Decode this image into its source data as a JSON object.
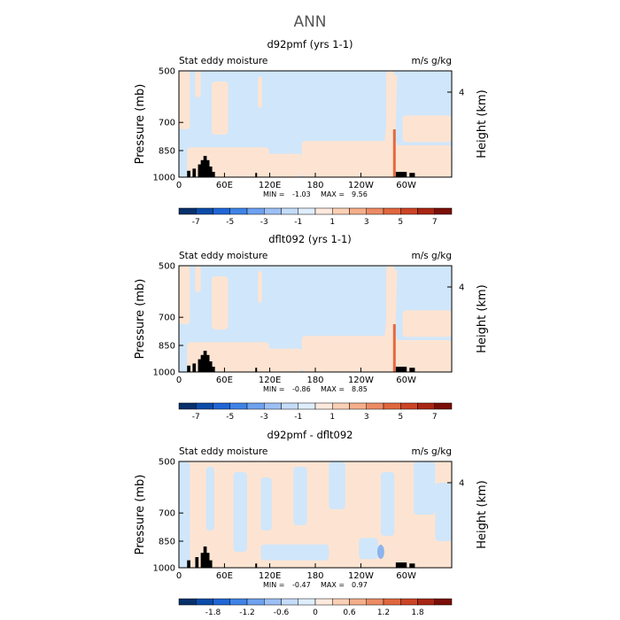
{
  "figure": {
    "title": "ANN"
  },
  "colors": {
    "neg_light": "#d0e6fa",
    "pos_light": "#fde4d2",
    "pos_mid": "#f5c0a0",
    "pos_strong": "#e46a3f",
    "neg_mid": "#8cb4ec",
    "terrain": "#000000",
    "axis": "#000000"
  },
  "chart_data": [
    {
      "type": "heatmap",
      "title": "d92pmf (yrs 1-1)",
      "left_label": "Stat eddy moisture",
      "right_label": "m/s g/kg",
      "ylabel": "Pressure (mb)",
      "ylabel_right": "Height (km)",
      "yticks": [
        "500",
        "700",
        "850",
        "1000"
      ],
      "yticks_right": [
        "4"
      ],
      "xticks": [
        "0",
        "60E",
        "120E",
        "180",
        "120W",
        "60W"
      ],
      "min_label": "MIN =",
      "min_value": "-1.03",
      "max_label": "MAX =",
      "max_value": "9.56",
      "colorbar": {
        "labels": [
          "-7",
          "-5",
          "-3",
          "-1",
          "1",
          "3",
          "5",
          "7"
        ],
        "colors": [
          "#08306b",
          "#0c4ca8",
          "#2166d6",
          "#3f83e6",
          "#6ea1ef",
          "#9cc0f5",
          "#c4dcfa",
          "#dfeefd",
          "#fde9dd",
          "#fbd0b5",
          "#f5ae8a",
          "#ec8b65",
          "#e0673f",
          "#cc4426",
          "#a82613",
          "#7a0f08"
        ]
      }
    },
    {
      "type": "heatmap",
      "title": "dflt092 (yrs 1-1)",
      "left_label": "Stat eddy moisture",
      "right_label": "m/s g/kg",
      "ylabel": "Pressure (mb)",
      "ylabel_right": "Height (km)",
      "yticks": [
        "500",
        "700",
        "850",
        "1000"
      ],
      "yticks_right": [
        "4"
      ],
      "xticks": [
        "0",
        "60E",
        "120E",
        "180",
        "120W",
        "60W"
      ],
      "min_label": "MIN =",
      "min_value": "-0.86",
      "max_label": "MAX =",
      "max_value": "8.85",
      "colorbar": {
        "labels": [
          "-7",
          "-5",
          "-3",
          "-1",
          "1",
          "3",
          "5",
          "7"
        ],
        "colors": [
          "#08306b",
          "#0c4ca8",
          "#2166d6",
          "#3f83e6",
          "#6ea1ef",
          "#9cc0f5",
          "#c4dcfa",
          "#dfeefd",
          "#fde9dd",
          "#fbd0b5",
          "#f5ae8a",
          "#ec8b65",
          "#e0673f",
          "#cc4426",
          "#a82613",
          "#7a0f08"
        ]
      }
    },
    {
      "type": "heatmap",
      "title": "d92pmf - dflt092",
      "left_label": "Stat eddy moisture",
      "right_label": "m/s g/kg",
      "ylabel": "Pressure (mb)",
      "ylabel_right": "Height (km)",
      "yticks": [
        "500",
        "700",
        "850",
        "1000"
      ],
      "yticks_right": [
        "4"
      ],
      "xticks": [
        "0",
        "60E",
        "120E",
        "180",
        "120W",
        "60W"
      ],
      "min_label": "MIN =",
      "min_value": "-0.47",
      "max_label": "MAX =",
      "max_value": "0.97",
      "colorbar": {
        "labels": [
          "-1.8",
          "-1.2",
          "-0.6",
          "0",
          "0.6",
          "1.2",
          "1.8"
        ],
        "colors": [
          "#08306b",
          "#0c4ca8",
          "#2166d6",
          "#3f83e6",
          "#6ea1ef",
          "#9cc0f5",
          "#c4dcfa",
          "#dfeefd",
          "#fde9dd",
          "#fbd0b5",
          "#f5ae8a",
          "#ec8b65",
          "#e0673f",
          "#cc4426",
          "#a82613",
          "#7a0f08"
        ]
      }
    }
  ]
}
